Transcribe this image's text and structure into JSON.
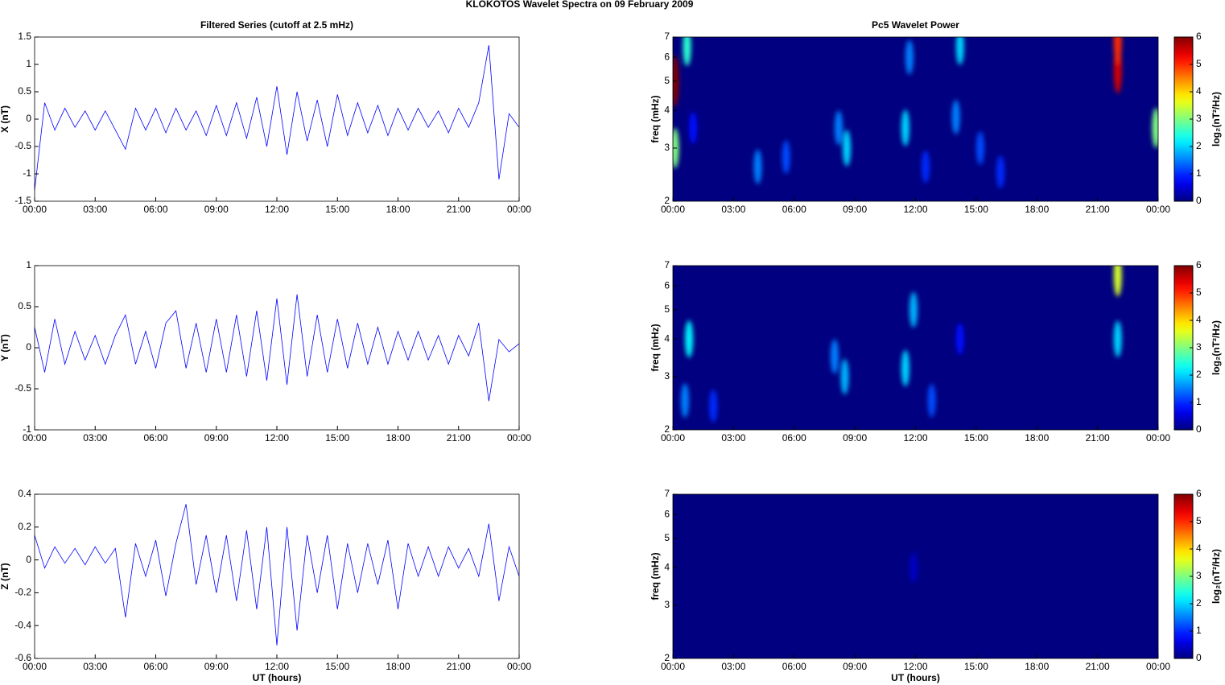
{
  "title": "KLOKOTOS Wavelet Spectra on 09 February  2009",
  "chart_data": [
    {
      "type": "line",
      "title": "Filtered Series (cutoff at 2.5 mHz)",
      "ylabel": "X (nT)",
      "color": "#0000ff",
      "x": [
        0,
        0.5,
        1,
        1.5,
        2,
        2.5,
        3,
        3.5,
        4,
        4.5,
        5,
        5.5,
        6,
        6.5,
        7,
        7.5,
        8,
        8.5,
        9,
        9.5,
        10,
        10.5,
        11,
        11.5,
        12,
        12.5,
        13,
        13.5,
        14,
        14.5,
        15,
        15.5,
        16,
        16.5,
        17,
        17.5,
        18,
        18.5,
        19,
        19.5,
        20,
        20.5,
        21,
        21.5,
        22,
        22.5,
        23,
        23.5,
        24
      ],
      "values": [
        -1.3,
        0.3,
        -0.2,
        0.2,
        -0.15,
        0.15,
        -0.2,
        0.15,
        -0.2,
        -0.55,
        0.2,
        -0.2,
        0.2,
        -0.25,
        0.2,
        -0.2,
        0.15,
        -0.3,
        0.25,
        -0.3,
        0.3,
        -0.35,
        0.4,
        -0.5,
        0.6,
        -0.65,
        0.5,
        -0.4,
        0.35,
        -0.5,
        0.45,
        -0.3,
        0.3,
        -0.25,
        0.25,
        -0.3,
        0.2,
        -0.2,
        0.2,
        -0.15,
        0.15,
        -0.25,
        0.2,
        -0.15,
        0.3,
        1.35,
        -1.1,
        0.1,
        -0.15
      ],
      "xlim": [
        0,
        24
      ],
      "xticks": [
        {
          "value": 0,
          "label": "00:00"
        },
        {
          "value": 3,
          "label": "03:00"
        },
        {
          "value": 6,
          "label": "06:00"
        },
        {
          "value": 9,
          "label": "09:00"
        },
        {
          "value": 12,
          "label": "12:00"
        },
        {
          "value": 15,
          "label": "15:00"
        },
        {
          "value": 18,
          "label": "18:00"
        },
        {
          "value": 21,
          "label": "21:00"
        },
        {
          "value": 24,
          "label": "00:00"
        }
      ],
      "ylim": [
        -1.5,
        1.5
      ],
      "yticks": [
        -1.5,
        -1,
        -0.5,
        0,
        0.5,
        1,
        1.5
      ]
    },
    {
      "type": "line",
      "ylabel": "Y (nT)",
      "color": "#0000ff",
      "x": [
        0,
        0.5,
        1,
        1.5,
        2,
        2.5,
        3,
        3.5,
        4,
        4.5,
        5,
        5.5,
        6,
        6.5,
        7,
        7.5,
        8,
        8.5,
        9,
        9.5,
        10,
        10.5,
        11,
        11.5,
        12,
        12.5,
        13,
        13.5,
        14,
        14.5,
        15,
        15.5,
        16,
        16.5,
        17,
        17.5,
        18,
        18.5,
        19,
        19.5,
        20,
        20.5,
        21,
        21.5,
        22,
        22.5,
        23,
        23.5,
        24
      ],
      "values": [
        0.25,
        -0.3,
        0.35,
        -0.2,
        0.2,
        -0.15,
        0.15,
        -0.2,
        0.15,
        0.4,
        -0.2,
        0.2,
        -0.25,
        0.3,
        0.45,
        -0.25,
        0.3,
        -0.3,
        0.35,
        -0.3,
        0.4,
        -0.35,
        0.45,
        -0.4,
        0.6,
        -0.45,
        0.65,
        -0.35,
        0.4,
        -0.3,
        0.35,
        -0.25,
        0.3,
        -0.2,
        0.25,
        -0.2,
        0.2,
        -0.15,
        0.2,
        -0.15,
        0.15,
        -0.2,
        0.15,
        -0.1,
        0.3,
        -0.65,
        0.1,
        -0.05,
        0.05
      ],
      "xlim": [
        0,
        24
      ],
      "xticks": [
        {
          "value": 0,
          "label": "00:00"
        },
        {
          "value": 3,
          "label": "03:00"
        },
        {
          "value": 6,
          "label": "06:00"
        },
        {
          "value": 9,
          "label": "09:00"
        },
        {
          "value": 12,
          "label": "12:00"
        },
        {
          "value": 15,
          "label": "15:00"
        },
        {
          "value": 18,
          "label": "18:00"
        },
        {
          "value": 21,
          "label": "21:00"
        },
        {
          "value": 24,
          "label": "00:00"
        }
      ],
      "ylim": [
        -1,
        1
      ],
      "yticks": [
        -1,
        -0.5,
        0,
        0.5,
        1
      ]
    },
    {
      "type": "line",
      "ylabel": "Z (nT)",
      "xlabel": "UT (hours)",
      "color": "#0000ff",
      "x": [
        0,
        0.5,
        1,
        1.5,
        2,
        2.5,
        3,
        3.5,
        4,
        4.5,
        5,
        5.5,
        6,
        6.5,
        7,
        7.5,
        8,
        8.5,
        9,
        9.5,
        10,
        10.5,
        11,
        11.5,
        12,
        12.5,
        13,
        13.5,
        14,
        14.5,
        15,
        15.5,
        16,
        16.5,
        17,
        17.5,
        18,
        18.5,
        19,
        19.5,
        20,
        20.5,
        21,
        21.5,
        22,
        22.5,
        23,
        23.5,
        24
      ],
      "values": [
        0.15,
        -0.05,
        0.08,
        -0.02,
        0.07,
        -0.03,
        0.08,
        -0.02,
        0.07,
        -0.35,
        0.1,
        -0.1,
        0.12,
        -0.22,
        0.1,
        0.34,
        -0.15,
        0.15,
        -0.2,
        0.15,
        -0.25,
        0.18,
        -0.3,
        0.2,
        -0.52,
        0.2,
        -0.43,
        0.15,
        -0.2,
        0.15,
        -0.3,
        0.1,
        -0.2,
        0.1,
        -0.15,
        0.12,
        -0.3,
        0.1,
        -0.1,
        0.08,
        -0.1,
        0.08,
        -0.05,
        0.07,
        -0.1,
        0.22,
        -0.25,
        0.08,
        -0.1
      ],
      "xlim": [
        0,
        24
      ],
      "xticks": [
        {
          "value": 0,
          "label": "00:00"
        },
        {
          "value": 3,
          "label": "03:00"
        },
        {
          "value": 6,
          "label": "06:00"
        },
        {
          "value": 9,
          "label": "09:00"
        },
        {
          "value": 12,
          "label": "12:00"
        },
        {
          "value": 15,
          "label": "15:00"
        },
        {
          "value": 18,
          "label": "18:00"
        },
        {
          "value": 21,
          "label": "21:00"
        },
        {
          "value": 24,
          "label": "00:00"
        }
      ],
      "ylim": [
        -0.6,
        0.4
      ],
      "yticks": [
        -0.6,
        -0.4,
        -0.2,
        0,
        0.2,
        0.4
      ]
    },
    {
      "type": "heatmap",
      "title": "Pc5 Wavelet Power",
      "ylabel": "freq (mHz)",
      "colorbar_label": "log₂(nT²/Hz)",
      "yscale": "log",
      "colormap": "jet",
      "x": [
        0.1,
        0.1,
        0.7,
        1.0,
        4.2,
        5.6,
        8.2,
        8.6,
        11.5,
        11.7,
        12.5,
        14.2,
        14.0,
        15.2,
        16.2,
        22.0,
        22.0,
        23.9
      ],
      "y": [
        5.0,
        3.0,
        6.5,
        3.5,
        2.6,
        2.8,
        3.5,
        3.0,
        3.5,
        6.0,
        2.6,
        6.5,
        3.8,
        3.0,
        2.5,
        5.5,
        6.8,
        3.5
      ],
      "values": [
        6,
        3,
        2.5,
        0.8,
        1.5,
        1.2,
        1.5,
        2,
        2,
        1.5,
        1,
        2,
        1.5,
        1.2,
        1,
        5.5,
        5,
        3
      ],
      "xlim": [
        0,
        24
      ],
      "xticks": [
        {
          "value": 0,
          "label": "00:00"
        },
        {
          "value": 3,
          "label": "03:00"
        },
        {
          "value": 6,
          "label": "06:00"
        },
        {
          "value": 9,
          "label": "09:00"
        },
        {
          "value": 12,
          "label": "12:00"
        },
        {
          "value": 15,
          "label": "15:00"
        },
        {
          "value": 18,
          "label": "18:00"
        },
        {
          "value": 21,
          "label": "21:00"
        },
        {
          "value": 24,
          "label": "00:00"
        }
      ],
      "ylim": [
        2,
        7
      ],
      "yticks": [
        2,
        3,
        4,
        5,
        6,
        7
      ],
      "clim": [
        0,
        6
      ],
      "cticks": [
        0,
        1,
        2,
        3,
        4,
        5,
        6
      ]
    },
    {
      "type": "heatmap",
      "ylabel": "freq (mHz)",
      "colorbar_label": "log₂(nT²/Hz)",
      "yscale": "log",
      "colormap": "jet",
      "x": [
        0.6,
        0.8,
        2.0,
        8.0,
        8.5,
        11.5,
        11.9,
        12.8,
        14.2,
        22.0,
        22.0
      ],
      "y": [
        2.5,
        4.0,
        2.4,
        3.5,
        3.0,
        3.2,
        5.0,
        2.5,
        4.0,
        6.5,
        4.0
      ],
      "values": [
        1.5,
        2.2,
        1,
        1.5,
        1.8,
        2,
        1.8,
        1.2,
        0.8,
        3.5,
        2
      ],
      "xlim": [
        0,
        24
      ],
      "xticks": [
        {
          "value": 0,
          "label": "00:00"
        },
        {
          "value": 3,
          "label": "03:00"
        },
        {
          "value": 6,
          "label": "06:00"
        },
        {
          "value": 9,
          "label": "09:00"
        },
        {
          "value": 12,
          "label": "12:00"
        },
        {
          "value": 15,
          "label": "15:00"
        },
        {
          "value": 18,
          "label": "18:00"
        },
        {
          "value": 21,
          "label": "21:00"
        },
        {
          "value": 24,
          "label": "00:00"
        }
      ],
      "ylim": [
        2,
        7
      ],
      "yticks": [
        2,
        3,
        4,
        5,
        6,
        7
      ],
      "clim": [
        0,
        6
      ],
      "cticks": [
        0,
        1,
        2,
        3,
        4,
        5,
        6
      ]
    },
    {
      "type": "heatmap",
      "ylabel": "freq (mHz)",
      "xlabel": "UT (hours)",
      "colorbar_label": "log₂(nT²/Hz)",
      "yscale": "log",
      "colormap": "jet",
      "x": [
        11.9
      ],
      "y": [
        4.0
      ],
      "values": [
        0.4
      ],
      "xlim": [
        0,
        24
      ],
      "xticks": [
        {
          "value": 0,
          "label": "00:00"
        },
        {
          "value": 3,
          "label": "03:00"
        },
        {
          "value": 6,
          "label": "06:00"
        },
        {
          "value": 9,
          "label": "09:00"
        },
        {
          "value": 12,
          "label": "12:00"
        },
        {
          "value": 15,
          "label": "15:00"
        },
        {
          "value": 18,
          "label": "18:00"
        },
        {
          "value": 21,
          "label": "21:00"
        },
        {
          "value": 24,
          "label": "00:00"
        }
      ],
      "ylim": [
        2,
        7
      ],
      "yticks": [
        2,
        3,
        4,
        5,
        6,
        7
      ],
      "clim": [
        0,
        6
      ],
      "cticks": [
        0,
        1,
        2,
        3,
        4,
        5,
        6
      ]
    }
  ]
}
